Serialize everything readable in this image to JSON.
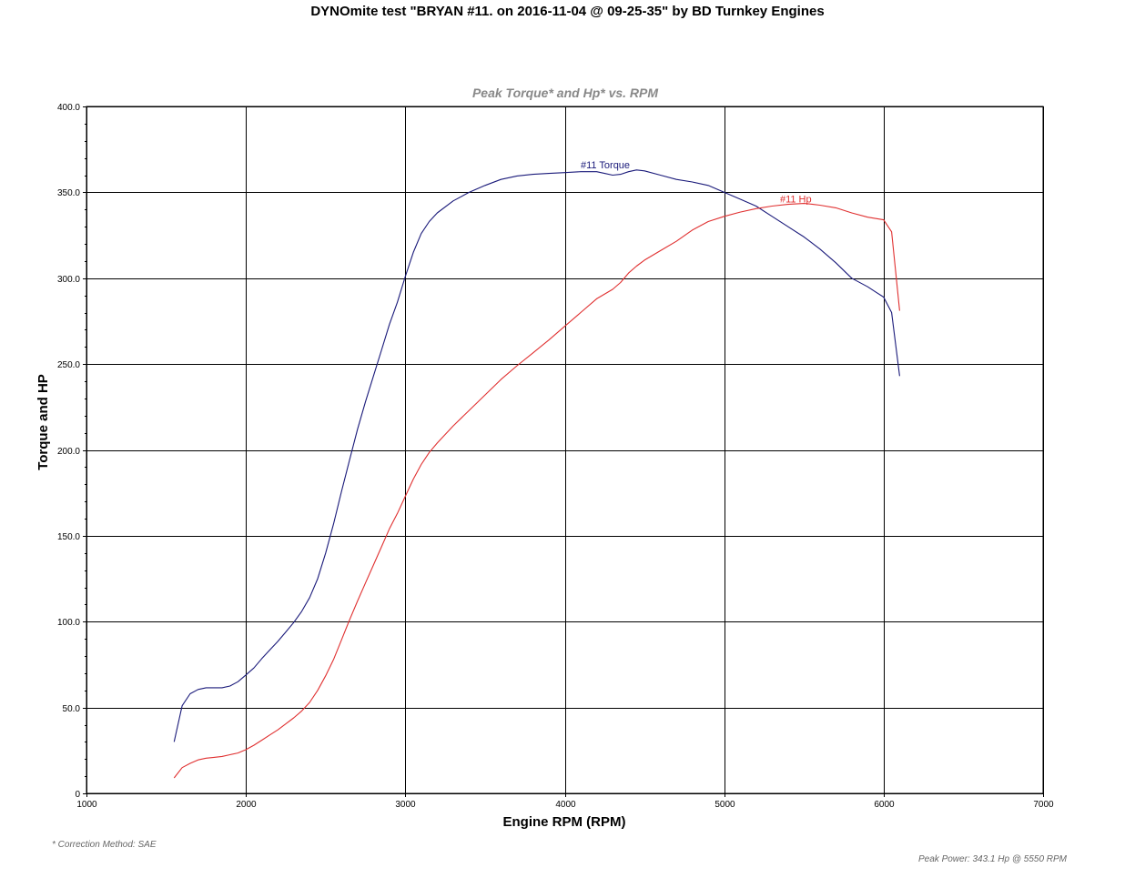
{
  "page": {
    "title": "DYNOmite test \"BRYAN #11. on 2016-11-04 @ 09-25-35\" by BD Turnkey Engines",
    "correction_note": "* Correction Method: SAE",
    "peak_power_note": "Peak Power: 343.1 Hp @ 5550 RPM"
  },
  "chart_data": {
    "type": "line",
    "title": "Peak Torque* and Hp* vs. RPM",
    "xlabel": "Engine RPM (RPM)",
    "ylabel": "Torque and HP",
    "xlim": [
      1000,
      7000
    ],
    "ylim": [
      0,
      400
    ],
    "xticks": [
      1000,
      2000,
      3000,
      4000,
      5000,
      6000,
      7000
    ],
    "xtick_labels": [
      "1000",
      "2000",
      "3000",
      "4000",
      "5000",
      "6000",
      "7000"
    ],
    "yticks": [
      0,
      50,
      100,
      150,
      200,
      250,
      300,
      350,
      400
    ],
    "ytick_labels": [
      "0",
      "50.0",
      "100.0",
      "150.0",
      "200.0",
      "250.0",
      "300.0",
      "350.0",
      "400.0"
    ],
    "grid": true,
    "series": [
      {
        "name": "#11 Torque",
        "color": "#1a1a7a",
        "label_at": [
          4100,
          364
        ],
        "points": [
          [
            1550,
            30
          ],
          [
            1600,
            51
          ],
          [
            1650,
            58
          ],
          [
            1700,
            60.5
          ],
          [
            1750,
            61.5
          ],
          [
            1800,
            61.5
          ],
          [
            1850,
            61.5
          ],
          [
            1900,
            62.5
          ],
          [
            1950,
            65
          ],
          [
            2000,
            69
          ],
          [
            2050,
            73
          ],
          [
            2100,
            78.5
          ],
          [
            2150,
            83.5
          ],
          [
            2200,
            88.5
          ],
          [
            2250,
            94
          ],
          [
            2300,
            99.5
          ],
          [
            2350,
            106
          ],
          [
            2400,
            114
          ],
          [
            2450,
            125
          ],
          [
            2500,
            140
          ],
          [
            2550,
            157
          ],
          [
            2600,
            176
          ],
          [
            2650,
            194
          ],
          [
            2700,
            212
          ],
          [
            2750,
            228
          ],
          [
            2800,
            243
          ],
          [
            2850,
            258
          ],
          [
            2900,
            273
          ],
          [
            2950,
            286
          ],
          [
            3000,
            301
          ],
          [
            3050,
            315
          ],
          [
            3100,
            326
          ],
          [
            3150,
            333
          ],
          [
            3200,
            338
          ],
          [
            3300,
            345
          ],
          [
            3400,
            350
          ],
          [
            3500,
            354
          ],
          [
            3600,
            357.5
          ],
          [
            3700,
            359.5
          ],
          [
            3800,
            360.5
          ],
          [
            3900,
            361
          ],
          [
            4000,
            361.5
          ],
          [
            4100,
            362
          ],
          [
            4200,
            362
          ],
          [
            4250,
            361
          ],
          [
            4300,
            360
          ],
          [
            4350,
            360.5
          ],
          [
            4400,
            362
          ],
          [
            4450,
            363
          ],
          [
            4500,
            362.5
          ],
          [
            4600,
            360
          ],
          [
            4700,
            357.5
          ],
          [
            4800,
            356
          ],
          [
            4900,
            354
          ],
          [
            5000,
            350
          ],
          [
            5100,
            346
          ],
          [
            5200,
            342
          ],
          [
            5300,
            336
          ],
          [
            5400,
            330
          ],
          [
            5500,
            324
          ],
          [
            5600,
            317
          ],
          [
            5700,
            309
          ],
          [
            5800,
            300
          ],
          [
            5900,
            295
          ],
          [
            5950,
            292
          ],
          [
            6000,
            289
          ],
          [
            6050,
            280
          ],
          [
            6100,
            243
          ]
        ]
      },
      {
        "name": "#11 Hp",
        "color": "#e03030",
        "label_at": [
          5350,
          344
        ],
        "points": [
          [
            1550,
            9
          ],
          [
            1600,
            15
          ],
          [
            1650,
            17.5
          ],
          [
            1700,
            19.5
          ],
          [
            1750,
            20.5
          ],
          [
            1800,
            21
          ],
          [
            1850,
            21.5
          ],
          [
            1900,
            22.5
          ],
          [
            1950,
            23.5
          ],
          [
            2000,
            25.5
          ],
          [
            2050,
            28
          ],
          [
            2100,
            31
          ],
          [
            2150,
            34
          ],
          [
            2200,
            37
          ],
          [
            2250,
            40.5
          ],
          [
            2300,
            44
          ],
          [
            2350,
            48
          ],
          [
            2400,
            53
          ],
          [
            2450,
            60
          ],
          [
            2500,
            68.5
          ],
          [
            2550,
            78
          ],
          [
            2600,
            89.5
          ],
          [
            2650,
            101
          ],
          [
            2700,
            112
          ],
          [
            2750,
            122.5
          ],
          [
            2800,
            133
          ],
          [
            2850,
            143.5
          ],
          [
            2900,
            154
          ],
          [
            2950,
            163
          ],
          [
            3000,
            173
          ],
          [
            3050,
            183
          ],
          [
            3100,
            191.5
          ],
          [
            3150,
            198.5
          ],
          [
            3200,
            204
          ],
          [
            3300,
            214
          ],
          [
            3400,
            223
          ],
          [
            3500,
            232
          ],
          [
            3600,
            241
          ],
          [
            3700,
            249
          ],
          [
            3800,
            256.5
          ],
          [
            3900,
            264
          ],
          [
            4000,
            272
          ],
          [
            4100,
            280
          ],
          [
            4200,
            288
          ],
          [
            4300,
            293.5
          ],
          [
            4350,
            297.5
          ],
          [
            4400,
            303
          ],
          [
            4450,
            307
          ],
          [
            4500,
            310.5
          ],
          [
            4600,
            316
          ],
          [
            4700,
            321.5
          ],
          [
            4800,
            328
          ],
          [
            4900,
            333
          ],
          [
            5000,
            336
          ],
          [
            5100,
            338.5
          ],
          [
            5200,
            340.5
          ],
          [
            5300,
            342
          ],
          [
            5400,
            343
          ],
          [
            5500,
            343.5
          ],
          [
            5550,
            343.1
          ],
          [
            5600,
            342.5
          ],
          [
            5700,
            341
          ],
          [
            5800,
            338
          ],
          [
            5900,
            335.5
          ],
          [
            6000,
            334
          ],
          [
            6050,
            327
          ],
          [
            6100,
            281
          ]
        ]
      }
    ]
  }
}
